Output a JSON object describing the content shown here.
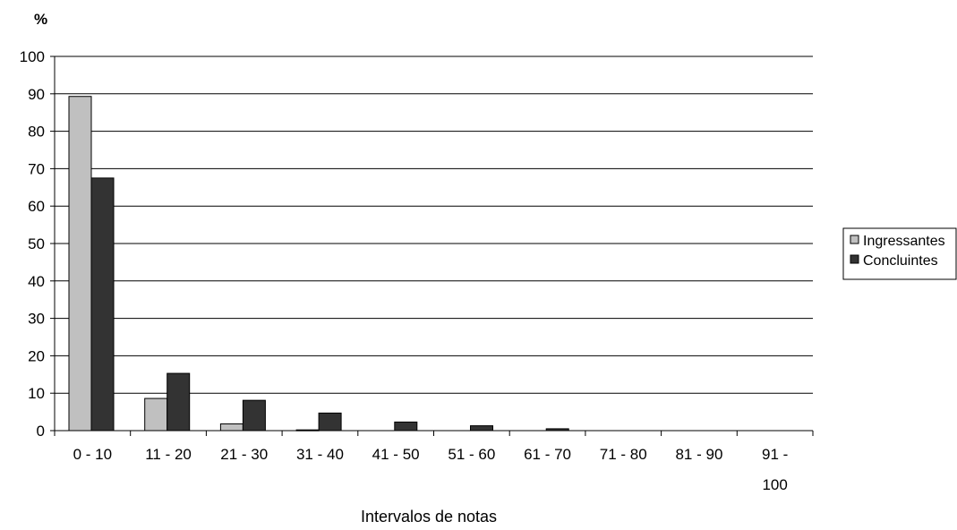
{
  "chart_data": {
    "type": "bar",
    "title": "",
    "ylabel": "%",
    "xlabel": "Intervalos de notas",
    "ylim": [
      0,
      100
    ],
    "yticks": [
      0,
      10,
      20,
      30,
      40,
      50,
      60,
      70,
      80,
      90,
      100
    ],
    "grid": true,
    "legend_position": "right",
    "categories": [
      "0 - 10",
      "11 - 20",
      "21 - 30",
      "31 - 40",
      "41 - 50",
      "51 - 60",
      "61 - 70",
      "71 - 80",
      "81 - 90",
      "91 - 100"
    ],
    "series": [
      {
        "name": "Ingressantes",
        "color": "#c0c0c0",
        "values": [
          89.3,
          8.6,
          1.8,
          0.2,
          0,
          0,
          0,
          0,
          0,
          0
        ]
      },
      {
        "name": "Concluintes",
        "color": "#333333",
        "values": [
          67.5,
          15.3,
          8.1,
          4.7,
          2.3,
          1.3,
          0.5,
          0,
          0,
          0
        ]
      }
    ]
  }
}
